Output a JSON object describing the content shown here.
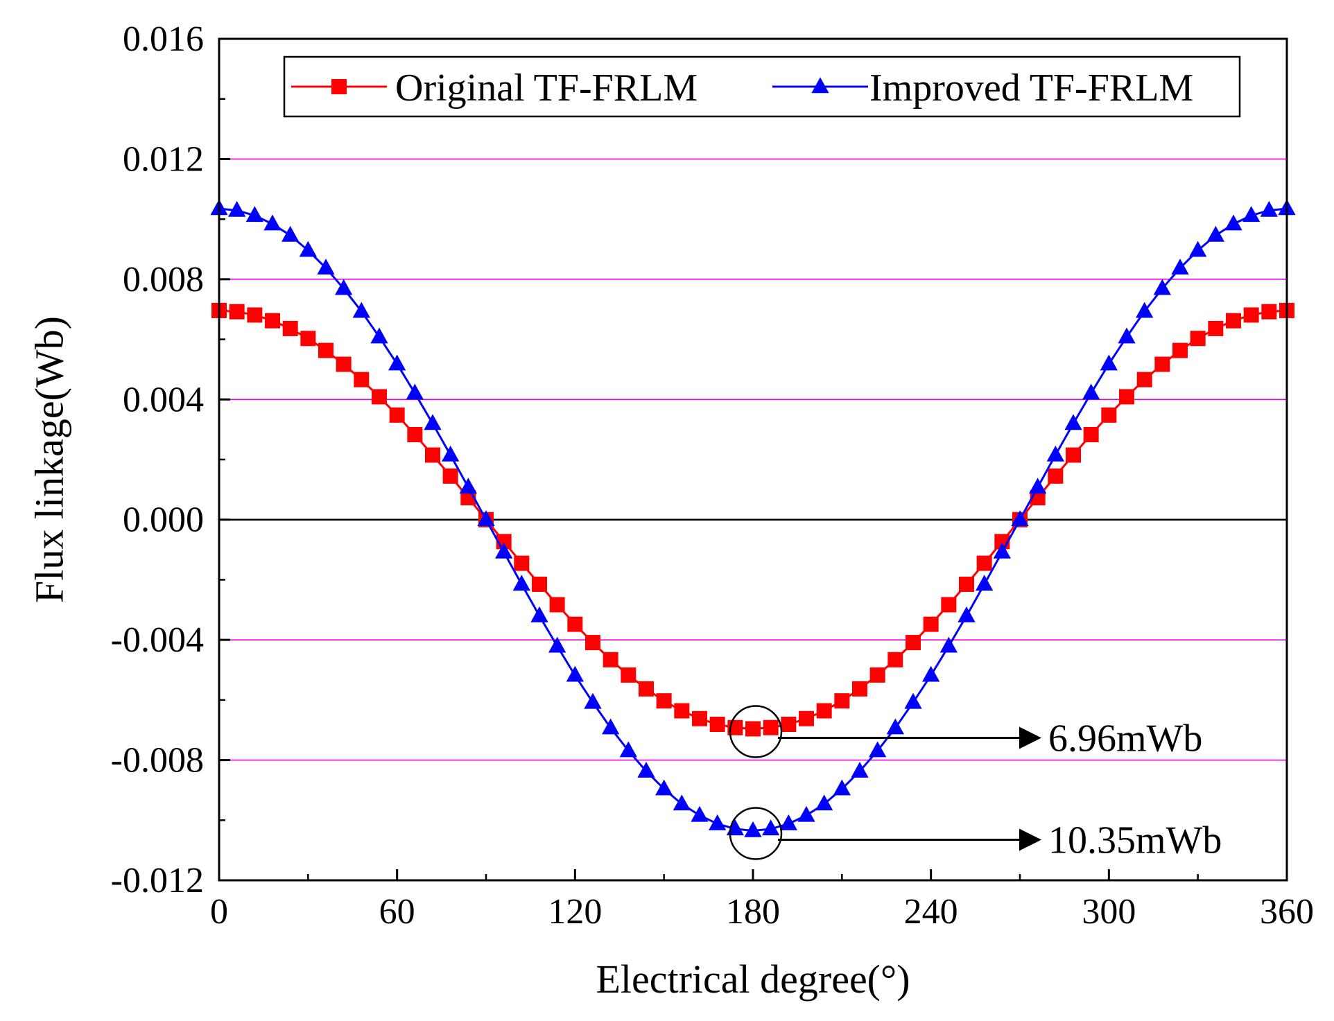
{
  "chart_data": {
    "type": "line",
    "title": "",
    "xlabel": "Electrical degree(°)",
    "ylabel": "Flux linkage(Wb)",
    "xlim": [
      0,
      360
    ],
    "ylim": [
      -0.012,
      0.016
    ],
    "xticks": [
      0,
      60,
      120,
      180,
      240,
      300,
      360
    ],
    "xtick_labels": [
      "0",
      "60",
      "120",
      "180",
      "240",
      "300",
      "360"
    ],
    "yticks": [
      -0.012,
      -0.008,
      -0.004,
      0.0,
      0.004,
      0.008,
      0.012,
      0.016
    ],
    "ytick_labels": [
      "-0.012",
      "-0.008",
      "-0.004",
      "0.000",
      "0.004",
      "0.008",
      "0.012",
      "0.016"
    ],
    "grid": "horizontal lines at major y ticks, magenta",
    "legend_position": "top",
    "x": [
      0,
      6,
      12,
      18,
      24,
      30,
      36,
      42,
      48,
      54,
      60,
      66,
      72,
      78,
      84,
      90,
      96,
      102,
      108,
      114,
      120,
      126,
      132,
      138,
      144,
      150,
      156,
      162,
      168,
      174,
      180,
      186,
      192,
      198,
      204,
      210,
      216,
      222,
      228,
      234,
      240,
      246,
      252,
      258,
      264,
      270,
      276,
      282,
      288,
      294,
      300,
      306,
      312,
      318,
      324,
      330,
      336,
      342,
      348,
      354,
      360
    ],
    "series": [
      {
        "name": "Original TF-FRLM",
        "color": "#ff0000",
        "marker": "square",
        "values": [
          0.00696,
          0.00692,
          0.00681,
          0.00662,
          0.00636,
          0.00603,
          0.00563,
          0.00517,
          0.00466,
          0.00409,
          0.00348,
          0.00283,
          0.00215,
          0.00145,
          0.00073,
          0.0,
          -0.00073,
          -0.00145,
          -0.00215,
          -0.00283,
          -0.00348,
          -0.00409,
          -0.00466,
          -0.00517,
          -0.00563,
          -0.00603,
          -0.00636,
          -0.00662,
          -0.00681,
          -0.00692,
          -0.00696,
          -0.00692,
          -0.00681,
          -0.00662,
          -0.00636,
          -0.00603,
          -0.00563,
          -0.00517,
          -0.00466,
          -0.00409,
          -0.00348,
          -0.00283,
          -0.00215,
          -0.00145,
          -0.00073,
          0.0,
          0.00073,
          0.00145,
          0.00215,
          0.00283,
          0.00348,
          0.00409,
          0.00466,
          0.00517,
          0.00563,
          0.00603,
          0.00636,
          0.00662,
          0.00681,
          0.00692,
          0.00696
        ]
      },
      {
        "name": "Improved TF-FRLM",
        "color": "#0000ff",
        "marker": "triangle",
        "values": [
          0.01035,
          0.01029,
          0.01012,
          0.00984,
          0.00946,
          0.00896,
          0.00837,
          0.00769,
          0.00693,
          0.00608,
          0.00518,
          0.00421,
          0.0032,
          0.00215,
          0.00108,
          0.0,
          -0.00108,
          -0.00215,
          -0.0032,
          -0.00421,
          -0.00518,
          -0.00608,
          -0.00693,
          -0.00769,
          -0.00837,
          -0.00896,
          -0.00946,
          -0.00984,
          -0.01012,
          -0.01029,
          -0.01035,
          -0.01029,
          -0.01012,
          -0.00984,
          -0.00946,
          -0.00896,
          -0.00837,
          -0.00769,
          -0.00693,
          -0.00608,
          -0.00518,
          -0.00421,
          -0.0032,
          -0.00215,
          -0.00108,
          0.0,
          0.00108,
          0.00215,
          0.0032,
          0.00421,
          0.00518,
          0.00608,
          0.00693,
          0.00769,
          0.00837,
          0.00896,
          0.00946,
          0.00984,
          0.01012,
          0.01029,
          0.01035
        ]
      }
    ],
    "annotations": [
      {
        "text": "6.96mWb",
        "x": 180,
        "y": -0.00696,
        "series": "Original TF-FRLM"
      },
      {
        "text": "10.35mWb",
        "x": 180,
        "y": -0.01035,
        "series": "Improved TF-FRLM"
      }
    ]
  }
}
